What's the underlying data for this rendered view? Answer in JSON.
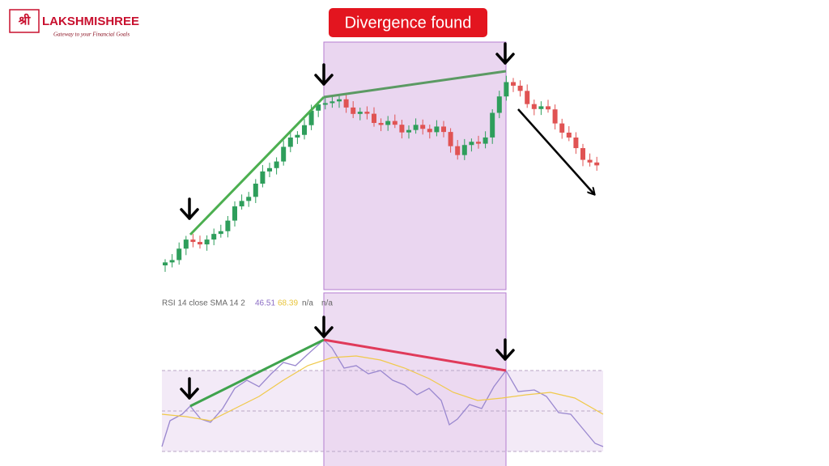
{
  "logo": {
    "script": "श्री",
    "name": "LAKSHMISHREE",
    "tagline": "Gateway to your Financial Goals"
  },
  "banner": "Divergence found",
  "rsi_legend": {
    "label": "RSI 14 close SMA 14 2",
    "rsi": "46.51",
    "sma": "68.39",
    "na1": "n/a",
    "na2": "n/a"
  }
}
